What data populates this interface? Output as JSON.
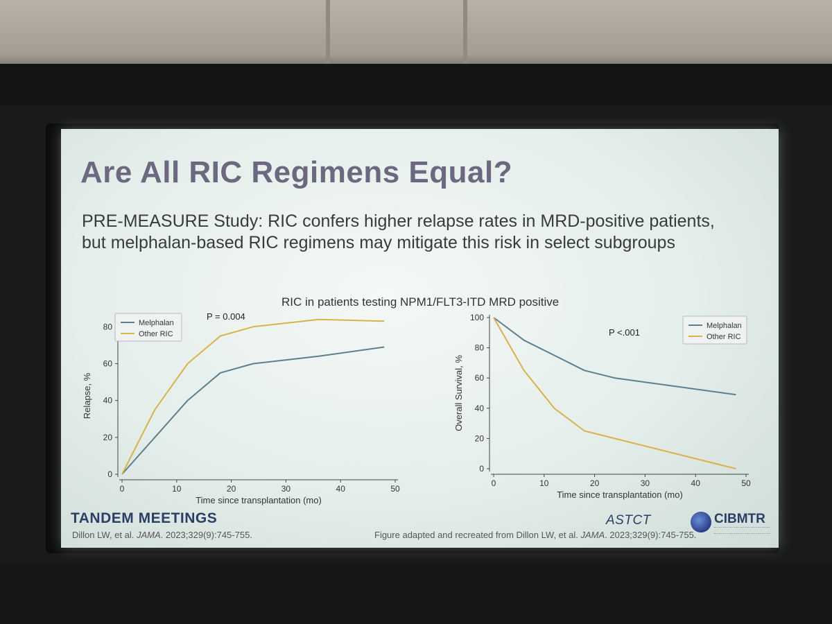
{
  "slide": {
    "title": "Are All RIC Regimens Equal?",
    "subtitle": "PRE-MEASURE Study: RIC confers higher relapse rates in MRD-positive patients, but melphalan-based RIC regimens may mitigate this risk in select subgroups",
    "chart_heading": "RIC in patients testing NPM1/FLT3-ITD MRD positive",
    "footer_brand": "TANDEM MEETINGS",
    "citation_left": {
      "authors": "Dillon LW, et al. ",
      "journal": "JAMA",
      "ref": ". 2023;329(9):745-755."
    },
    "citation_right": {
      "prefix": "Figure adapted and recreated from Dillon LW, et al. ",
      "journal": "JAMA",
      "ref": ". 2023;329(9):745-755."
    },
    "logo_astct": "ASTCT",
    "logo_cibmtr": "CIBMTR"
  },
  "colors": {
    "melphalan": "#5b7f8e",
    "other_ric": "#d9b24a",
    "axis": "#444444"
  },
  "chart_data": [
    {
      "type": "line",
      "title": "",
      "annotation": "P = 0.004",
      "xlabel": "Time since transplantation (mo)",
      "ylabel": "Relapse, %",
      "xlim": [
        0,
        50
      ],
      "ylim": [
        0,
        85
      ],
      "xticks": [
        0,
        10,
        20,
        30,
        40,
        50
      ],
      "yticks": [
        0,
        20,
        40,
        60,
        80
      ],
      "legend_position": "top-left",
      "series": [
        {
          "name": "Melphalan",
          "x": [
            0,
            6,
            12,
            18,
            24,
            36,
            48
          ],
          "y": [
            0,
            20,
            40,
            55,
            60,
            64,
            69
          ]
        },
        {
          "name": "Other RIC",
          "x": [
            0,
            6,
            12,
            18,
            24,
            36,
            48
          ],
          "y": [
            0,
            35,
            60,
            75,
            80,
            84,
            83
          ]
        }
      ]
    },
    {
      "type": "line",
      "title": "",
      "annotation": "P <.001",
      "xlabel": "Time since transplantation (mo)",
      "ylabel": "Overall Survival, %",
      "xlim": [
        0,
        50
      ],
      "ylim": [
        0,
        100
      ],
      "xticks": [
        0,
        10,
        20,
        30,
        40,
        50
      ],
      "yticks": [
        0,
        20,
        40,
        60,
        80,
        100
      ],
      "legend_position": "top-right",
      "series": [
        {
          "name": "Melphalan",
          "x": [
            0,
            6,
            12,
            18,
            24,
            48
          ],
          "y": [
            100,
            85,
            75,
            65,
            60,
            49
          ]
        },
        {
          "name": "Other RIC",
          "x": [
            0,
            6,
            12,
            18,
            24,
            48
          ],
          "y": [
            100,
            65,
            40,
            25,
            20,
            0
          ]
        }
      ]
    }
  ]
}
